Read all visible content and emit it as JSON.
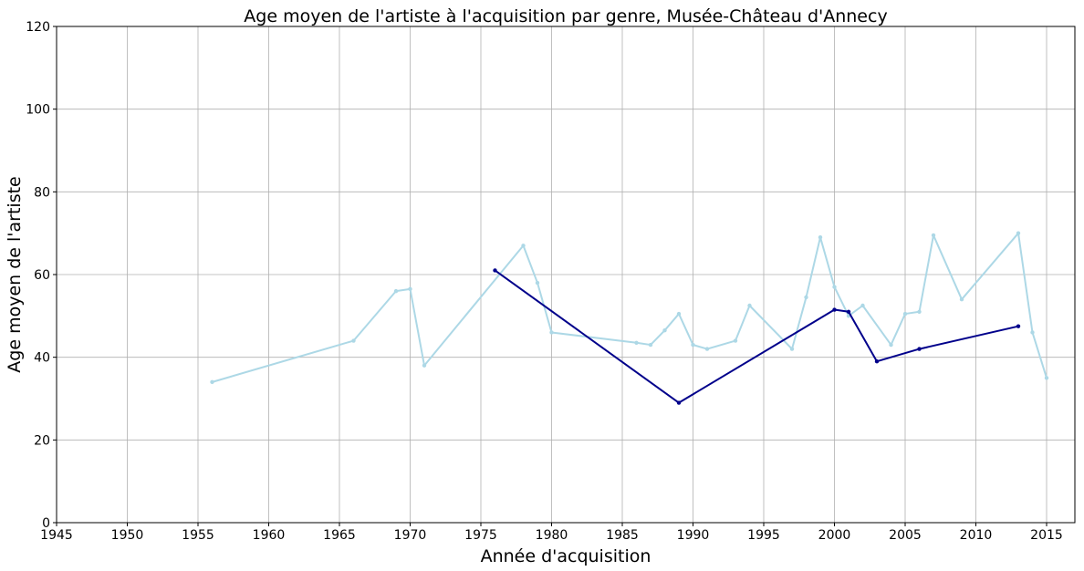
{
  "chart_data": {
    "type": "line",
    "title": "Age moyen de l'artiste à l'acquisition par genre, Musée-Château d'Annecy",
    "xlabel": "Année d'acquisition",
    "ylabel": "Age moyen de l'artiste",
    "xlim": [
      1945,
      2017
    ],
    "ylim": [
      0,
      120
    ],
    "xticks": [
      1945,
      1950,
      1955,
      1960,
      1965,
      1970,
      1975,
      1980,
      1985,
      1990,
      1995,
      2000,
      2005,
      2010,
      2015
    ],
    "yticks": [
      0,
      20,
      40,
      60,
      80,
      100,
      120
    ],
    "grid": true,
    "series": [
      {
        "color": "#add8e6",
        "x": [
          1956,
          1966,
          1969,
          1970,
          1971,
          1978,
          1979,
          1980,
          1986,
          1987,
          1988,
          1989,
          1990,
          1991,
          1993,
          1994,
          1997,
          1998,
          1999,
          2000,
          2001,
          2002,
          2004,
          2005,
          2006,
          2007,
          2009,
          2013,
          2014,
          2015
        ],
        "y": [
          34,
          44,
          56,
          56.5,
          38,
          67,
          58,
          46,
          43.5,
          43,
          46.5,
          50.5,
          43,
          42,
          44,
          52.5,
          42,
          54.5,
          69,
          57,
          50,
          52.5,
          43,
          50.5,
          51,
          69.5,
          54,
          70,
          46,
          35
        ]
      },
      {
        "color": "#00008b",
        "x": [
          1976,
          1989,
          2000,
          2001,
          2003,
          2006,
          2013
        ],
        "y": [
          61,
          29,
          51.5,
          51,
          39,
          42,
          47.5
        ]
      }
    ]
  }
}
